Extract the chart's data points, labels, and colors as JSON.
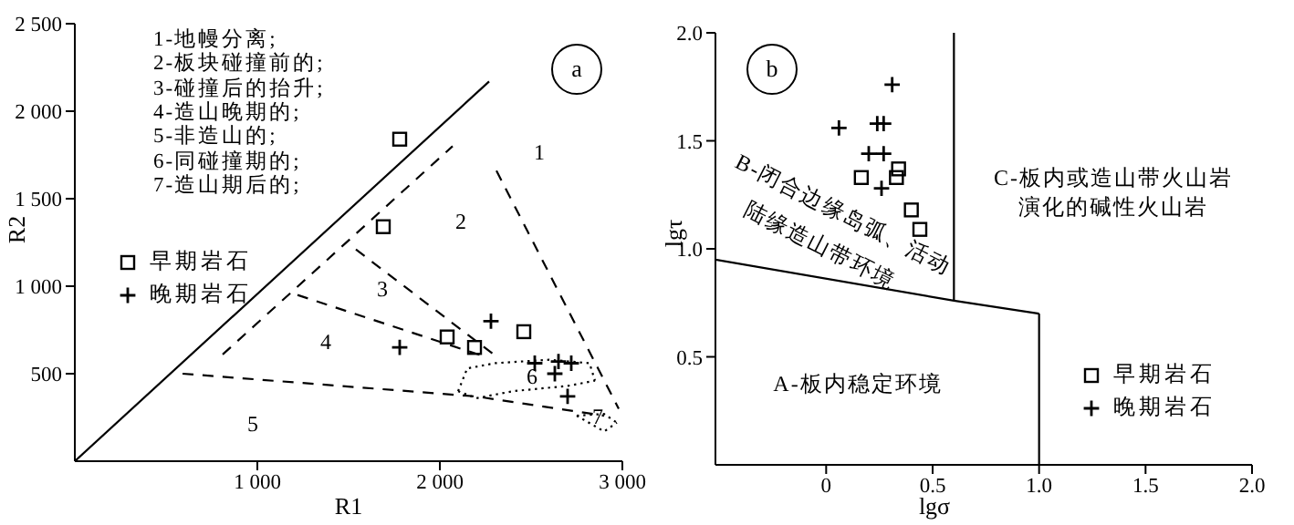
{
  "chart_data": [
    {
      "type": "scatter",
      "title": "a",
      "xlabel": "R1",
      "ylabel": "R2",
      "xlim": [
        0,
        3000
      ],
      "ylim": [
        0,
        2500
      ],
      "xticks": [
        {
          "value": 1000,
          "label": "1 000"
        },
        {
          "value": 2000,
          "label": "2 000"
        },
        {
          "value": 3000,
          "label": "3 000"
        }
      ],
      "yticks": [
        500,
        {
          "value": 1000,
          "label": "1 000"
        },
        {
          "value": 1500,
          "label": "1 500"
        },
        {
          "value": 2000,
          "label": "2 000"
        },
        {
          "value": 2500,
          "label": "2 500"
        }
      ],
      "legend": "left",
      "annotations": [
        "1-地幔分离;",
        "2-板块碰撞前的;",
        "3-碰撞后的抬升;",
        "4-造山晚期的;",
        "5-非造山的;",
        "6-同碰撞期的;",
        "7-造山期后的;",
        "1",
        "2",
        "3",
        "4",
        "5",
        "6",
        "7"
      ],
      "series": [
        {
          "name": "早期岩石",
          "marker": "square",
          "color": "#000000",
          "x": [
            1780,
            1690,
            2040,
            2190,
            2460
          ],
          "values": [
            1840,
            1340,
            710,
            650,
            740
          ]
        },
        {
          "name": "晚期岩石",
          "marker": "cross",
          "color": "#000000",
          "x": [
            2280,
            1780,
            2520,
            2720,
            2630,
            2700,
            2650
          ],
          "values": [
            800,
            650,
            560,
            560,
            500,
            370,
            570
          ]
        },
        {
          "type": "line",
          "line_style": "solid",
          "color": "#000000",
          "x": [
            0,
            2270
          ],
          "values": [
            0,
            2170
          ]
        },
        {
          "type": "line",
          "line_style": "dashed",
          "color": "#000000",
          "x": [
            810,
            2070
          ],
          "values": [
            610,
            1800
          ]
        },
        {
          "type": "line",
          "line_style": "dashed",
          "color": "#000000",
          "x": [
            2310,
            2980
          ],
          "values": [
            1660,
            300
          ]
        },
        {
          "type": "line",
          "line_style": "dashed",
          "color": "#000000",
          "x": [
            1540,
            2320
          ],
          "values": [
            1210,
            590
          ]
        },
        {
          "type": "line",
          "line_style": "dashed",
          "color": "#000000",
          "x": [
            1220,
            2240
          ],
          "values": [
            950,
            600
          ]
        },
        {
          "type": "line",
          "line_style": "dashed",
          "color": "#000000",
          "x": [
            590,
            2200,
            2900
          ],
          "values": [
            500,
            370,
            260
          ]
        },
        {
          "type": "line",
          "line_style": "dotted",
          "color": "#000000",
          "x": [
            2100,
            2150,
            2300,
            2600,
            2820,
            2850
          ],
          "values": [
            400,
            530,
            560,
            580,
            560,
            460
          ]
        },
        {
          "type": "line",
          "line_style": "dotted",
          "color": "#000000",
          "x": [
            2100,
            2200,
            2400,
            2700,
            2850
          ],
          "values": [
            400,
            360,
            400,
            430,
            460
          ]
        },
        {
          "type": "line",
          "line_style": "dotted",
          "color": "#000000",
          "x": [
            2750,
            2900,
            2970
          ],
          "values": [
            260,
            270,
            220
          ]
        },
        {
          "type": "line",
          "line_style": "dotted",
          "color": "#000000",
          "x": [
            2750,
            2800,
            2900,
            2970
          ],
          "values": [
            260,
            230,
            170,
            220
          ]
        }
      ]
    },
    {
      "type": "scatter",
      "title": "b",
      "xlabel": "lgσ",
      "ylabel": "lgτ",
      "xlim": [
        -0.52,
        2
      ],
      "ylim": [
        0,
        2
      ],
      "xticks": [
        0,
        0.5,
        {
          "value": 1,
          "label": "1.0"
        },
        1.5,
        {
          "value": 2,
          "label": "2.0"
        }
      ],
      "yticks": [
        0.5,
        {
          "value": 1,
          "label": "1.0"
        },
        1.5,
        {
          "value": 2,
          "label": "2.0"
        }
      ],
      "legend": "bottom right",
      "annotations": [
        "B-闭合边缘岛弧、活动",
        "陆缘造山带环境",
        "C-板内或造山带火山岩",
        "演化的碱性火山岩",
        "A-板内稳定环境"
      ],
      "series": [
        {
          "name": "早期岩石",
          "marker": "square",
          "color": "#000000",
          "x": [
            0.165,
            0.33,
            0.34,
            0.4,
            0.44
          ],
          "values": [
            1.33,
            1.33,
            1.37,
            1.18,
            1.09
          ]
        },
        {
          "name": "晚期岩石",
          "marker": "cross",
          "color": "#000000",
          "x": [
            0.31,
            0.06,
            0.24,
            0.27,
            0.2,
            0.27,
            0.26
          ],
          "values": [
            1.76,
            1.56,
            1.58,
            1.58,
            1.44,
            1.44,
            1.28
          ]
        },
        {
          "type": "line",
          "line_style": "solid",
          "color": "#000000",
          "x": [
            -0.52,
            0.6,
            1.0
          ],
          "values": [
            0.95,
            0.76,
            0.7
          ]
        },
        {
          "type": "line",
          "line_style": "solid",
          "color": "#000000",
          "x": [
            0.6,
            0.6
          ],
          "values": [
            0.76,
            2
          ]
        },
        {
          "type": "line",
          "line_style": "solid",
          "color": "#000000",
          "x": [
            1.0,
            1.0
          ],
          "values": [
            0,
            0.7
          ]
        }
      ]
    }
  ]
}
